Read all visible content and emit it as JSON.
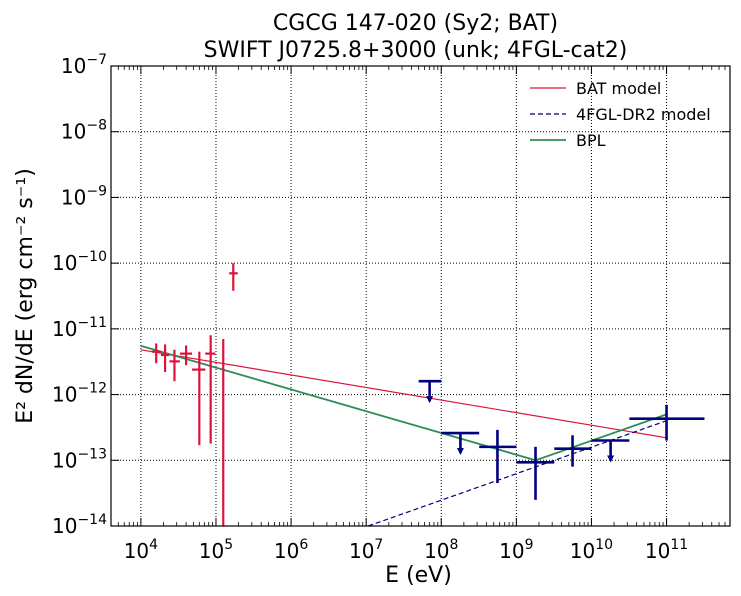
{
  "chart_data": {
    "type": "scatter",
    "title": [
      "CGCG 147-020 (Sy2; BAT)",
      "SWIFT J0725.8+3000 (unk; 4FGL-cat2)"
    ],
    "xlabel": "E (eV)",
    "ylabel": "E² dN/dE (erg cm⁻² s⁻¹)",
    "xscale": "log",
    "yscale": "log",
    "xlim": [
      4000,
      700000000000
    ],
    "ylim": [
      1e-14,
      1e-07
    ],
    "grid": true,
    "legend_position": "top-right",
    "x_tick_exponents": [
      4,
      5,
      6,
      7,
      8,
      9,
      10,
      11
    ],
    "y_tick_exponents": [
      -14,
      -13,
      -12,
      -11,
      -10,
      -9,
      -8,
      -7
    ],
    "colors": {
      "bat_model": "#dc143c",
      "fgl_model": "#000080",
      "bpl": "#2e8b57",
      "bat_points": "#dc143c",
      "fermi_points": "#000080",
      "grid": "#000000"
    },
    "series": [
      {
        "name": "BAT model",
        "kind": "line",
        "style": "solid",
        "x": [
          10000,
          100000000000
        ],
        "y": [
          4.8e-12,
          2.2e-13
        ]
      },
      {
        "name": "4FGL-DR2 model",
        "kind": "line",
        "style": "dashed",
        "x": [
          3000000,
          100000000000
        ],
        "y": [
          6e-15,
          4e-13
        ]
      },
      {
        "name": "BPL",
        "kind": "line",
        "style": "solid",
        "x": [
          10000,
          1800000000,
          100000000000
        ],
        "y": [
          5.5e-12,
          1e-13,
          5e-13
        ]
      }
    ],
    "bat_points": [
      {
        "x": 16000,
        "xlo": 14000,
        "xhi": 18500,
        "y": 4.5e-12,
        "ylo": 3e-12,
        "yhi": 6e-12
      },
      {
        "x": 21000,
        "xlo": 18500,
        "xhi": 24000,
        "y": 4e-12,
        "ylo": 2.2e-12,
        "yhi": 5.8e-12
      },
      {
        "x": 28000,
        "xlo": 24000,
        "xhi": 33000,
        "y": 3.2e-12,
        "ylo": 1.6e-12,
        "yhi": 4.8e-12
      },
      {
        "x": 40000,
        "xlo": 33000,
        "xhi": 48000,
        "y": 4.2e-12,
        "ylo": 2.8e-12,
        "yhi": 5.6e-12
      },
      {
        "x": 60000,
        "xlo": 48000,
        "xhi": 72000,
        "y": 2.4e-12,
        "ylo": 1.7e-13,
        "yhi": 4.5e-12
      },
      {
        "x": 85000,
        "xlo": 72000,
        "xhi": 98000,
        "y": 4.2e-12,
        "ylo": 1.8e-13,
        "yhi": 8e-12
      },
      {
        "x": 125000,
        "xlo": 125000,
        "xhi": 125000,
        "y": 7e-12,
        "ylo": 1e-14,
        "yhi": 7e-12
      },
      {
        "x": 170000,
        "xlo": 150000,
        "xhi": 195000,
        "y": 7e-11,
        "ylo": 3.8e-11,
        "yhi": 1e-10
      }
    ],
    "fermi_points": [
      {
        "x": 70000000,
        "xlo": 50000000,
        "xhi": 100000000,
        "y": 1.6e-12,
        "upper_limit": true
      },
      {
        "x": 180000000,
        "xlo": 100000000,
        "xhi": 320000000,
        "y": 2.6e-13,
        "upper_limit": true
      },
      {
        "x": 560000000,
        "xlo": 320000000,
        "xhi": 1000000000,
        "y": 1.6e-13,
        "ylo": 4.5e-14,
        "yhi": 2.9e-13
      },
      {
        "x": 1800000000,
        "xlo": 1000000000,
        "xhi": 3200000000,
        "y": 9.3e-14,
        "ylo": 2.5e-14,
        "yhi": 1.6e-13
      },
      {
        "x": 5600000000,
        "xlo": 3200000000,
        "xhi": 10000000000,
        "y": 1.5e-13,
        "ylo": 8e-14,
        "yhi": 2.4e-13
      },
      {
        "x": 18000000000,
        "xlo": 10000000000,
        "xhi": 32000000000,
        "y": 2e-13,
        "upper_limit": true
      },
      {
        "x": 100000000000,
        "xlo": 32000000000,
        "xhi": 320000000000,
        "y": 4.3e-13,
        "ylo": 2e-13,
        "yhi": 7e-13
      }
    ]
  }
}
